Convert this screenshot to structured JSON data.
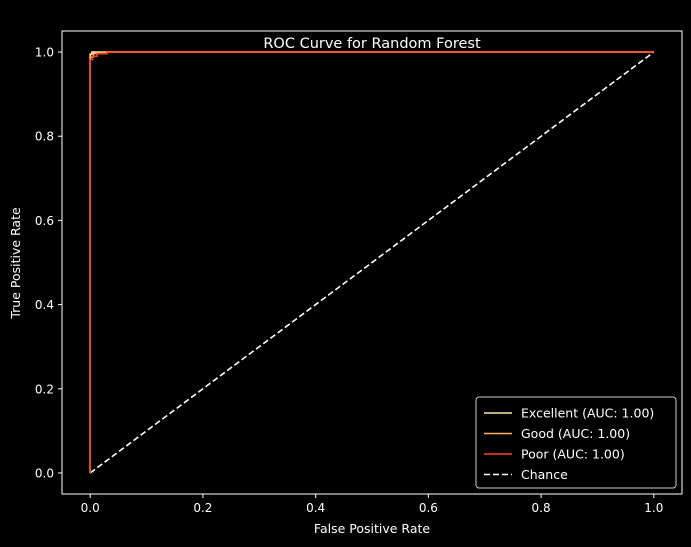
{
  "chart_data": {
    "type": "line",
    "title": "ROC Curve for Random Forest",
    "xlabel": "False Positive Rate",
    "ylabel": "True Positive Rate",
    "xlim": [
      -0.05,
      1.05
    ],
    "ylim": [
      -0.05,
      1.05
    ],
    "xticks": [
      0.0,
      0.2,
      0.4,
      0.6,
      0.8,
      1.0
    ],
    "yticks": [
      0.0,
      0.2,
      0.4,
      0.6,
      0.8,
      1.0
    ],
    "xtick_labels": [
      "0.0",
      "0.2",
      "0.4",
      "0.6",
      "0.8",
      "1.0"
    ],
    "ytick_labels": [
      "0.0",
      "0.2",
      "0.4",
      "0.6",
      "0.8",
      "1.0"
    ],
    "grid": false,
    "legend_position": "bottom-right",
    "background": "#000000",
    "foreground": "#ffffff",
    "series": [
      {
        "name": "Excellent (AUC: 1.00)",
        "color": "#fde9a4",
        "dash": "solid",
        "x": [
          0.0,
          0.0,
          0.003,
          0.003,
          1.0
        ],
        "y": [
          0.0,
          0.995,
          0.995,
          1.0,
          1.0
        ]
      },
      {
        "name": "Good (AUC: 1.00)",
        "color": "#fdb462",
        "dash": "solid",
        "x": [
          0.0,
          0.0,
          0.006,
          0.006,
          0.018,
          0.018,
          1.0
        ],
        "y": [
          0.0,
          0.988,
          0.988,
          0.997,
          0.997,
          1.0,
          1.0
        ]
      },
      {
        "name": "Poor (AUC: 1.00)",
        "color": "#ff4422",
        "dash": "solid",
        "x": [
          0.0,
          0.0,
          0.004,
          0.004,
          0.012,
          0.012,
          0.03,
          0.03,
          1.0
        ],
        "y": [
          0.0,
          0.982,
          0.982,
          0.99,
          0.99,
          0.996,
          0.996,
          1.0,
          1.0
        ]
      },
      {
        "name": "Chance",
        "color": "#ffffff",
        "dash": "dashed",
        "x": [
          0.0,
          1.0
        ],
        "y": [
          0.0,
          1.0
        ]
      }
    ]
  }
}
